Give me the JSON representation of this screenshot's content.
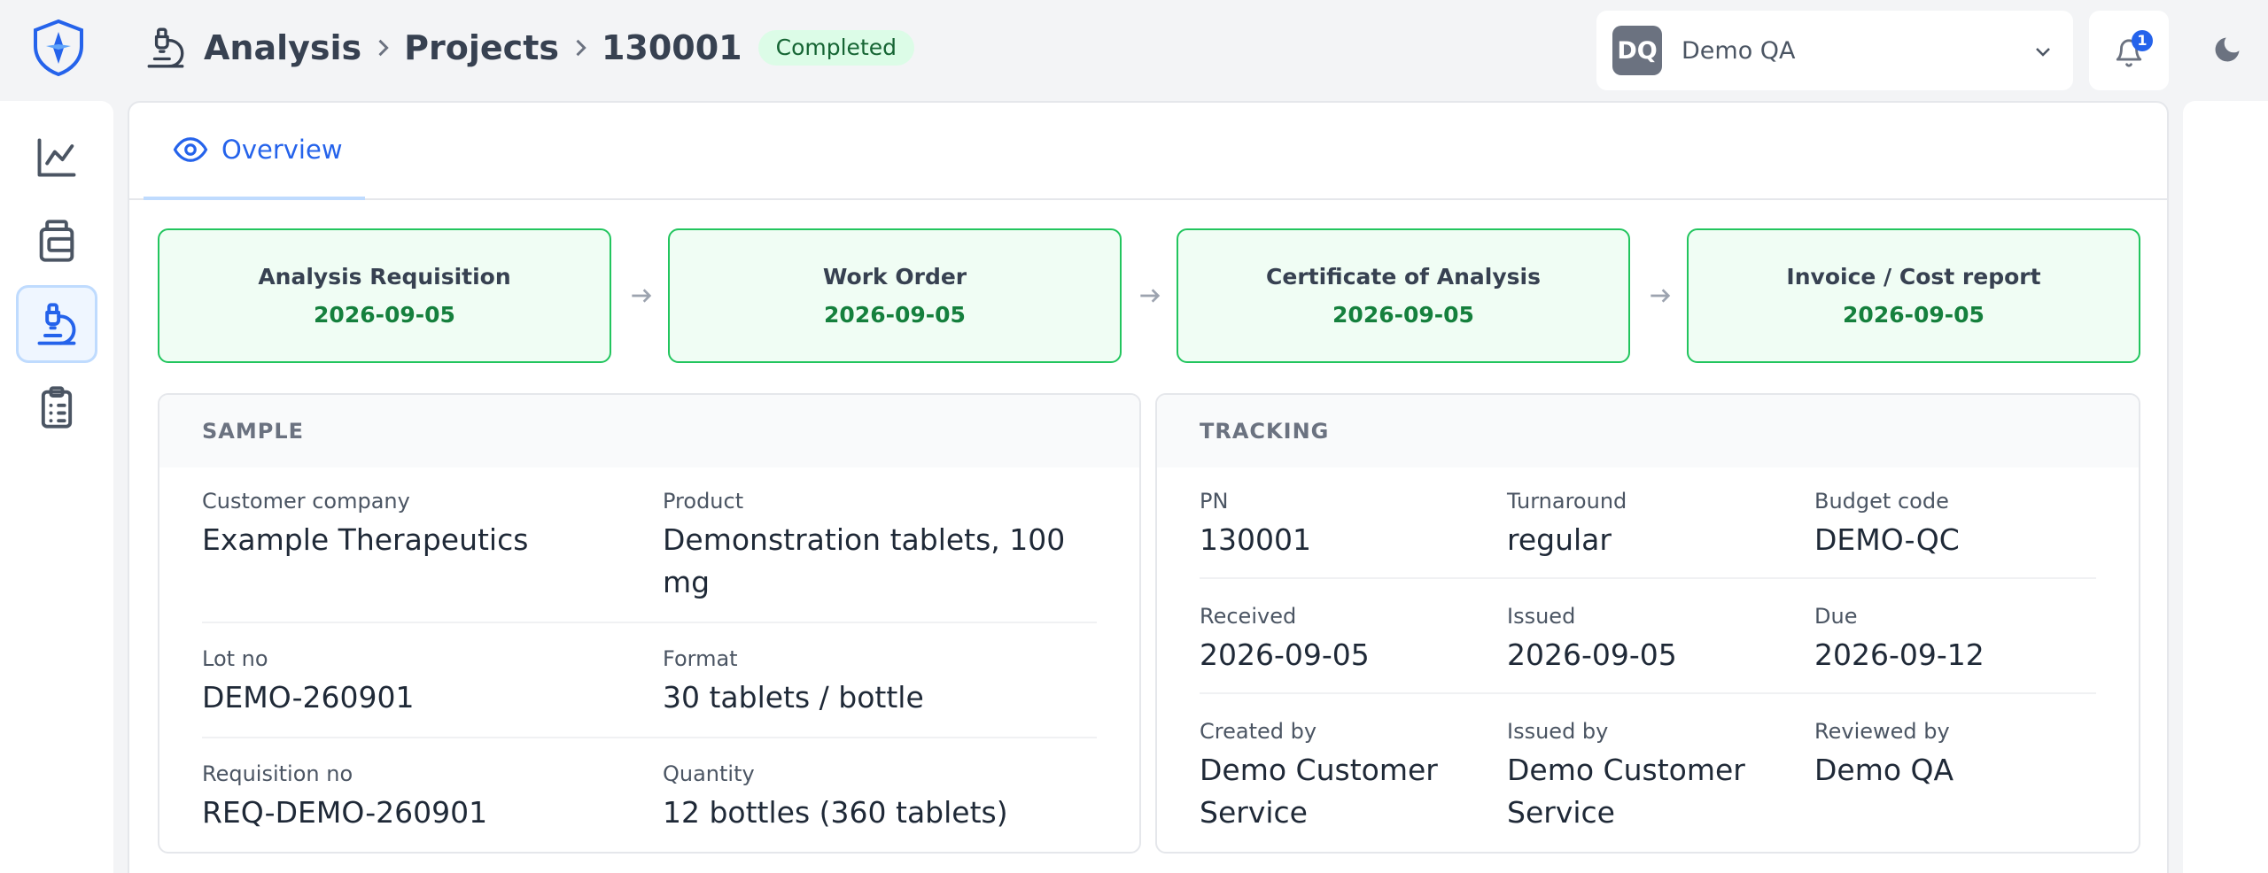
{
  "breadcrumb": {
    "items": [
      "Analysis",
      "Projects",
      "130001"
    ],
    "status": "Completed"
  },
  "account": {
    "initials": "DQ",
    "name": "Demo QA"
  },
  "notifications": {
    "count": "1"
  },
  "tabs": [
    {
      "label": "Overview",
      "icon": "eye-icon"
    }
  ],
  "workflow": [
    {
      "title": "Analysis Requisition",
      "date": "2026-09-05"
    },
    {
      "title": "Work Order",
      "date": "2026-09-05"
    },
    {
      "title": "Certificate of Analysis",
      "date": "2026-09-05"
    },
    {
      "title": "Invoice / Cost report",
      "date": "2026-09-05"
    }
  ],
  "sample": {
    "heading": "SAMPLE",
    "fields": [
      {
        "label": "Customer company",
        "value": "Example Therapeutics"
      },
      {
        "label": "Product",
        "value": "Demonstration tablets, 100 mg"
      },
      {
        "label": "Lot no",
        "value": "DEMO-260901"
      },
      {
        "label": "Format",
        "value": "30 tablets / bottle"
      },
      {
        "label": "Requisition no",
        "value": "REQ-DEMO-260901"
      },
      {
        "label": "Quantity",
        "value": "12 bottles (360 tablets)"
      }
    ]
  },
  "tracking": {
    "heading": "TRACKING",
    "fields": [
      {
        "label": "PN",
        "value": "130001"
      },
      {
        "label": "Turnaround",
        "value": "regular"
      },
      {
        "label": "Budget code",
        "value": "DEMO-QC"
      },
      {
        "label": "Received",
        "value": "2026-09-05"
      },
      {
        "label": "Issued",
        "value": "2026-09-05"
      },
      {
        "label": "Due",
        "value": "2026-09-12"
      },
      {
        "label": "Created by",
        "value": "Demo Customer Service"
      },
      {
        "label": "Issued by",
        "value": "Demo Customer Service"
      },
      {
        "label": "Reviewed by",
        "value": "Demo QA"
      }
    ]
  },
  "sidebar": {
    "items": [
      {
        "icon": "chart-line-icon"
      },
      {
        "icon": "jar-icon"
      },
      {
        "icon": "microscope-icon",
        "active": true
      },
      {
        "icon": "clipboard-list-icon"
      }
    ]
  },
  "colors": {
    "accent": "#2563eb",
    "success_bg": "#f0fdf4",
    "success_border": "#22c55e",
    "success_text": "#15803d"
  }
}
